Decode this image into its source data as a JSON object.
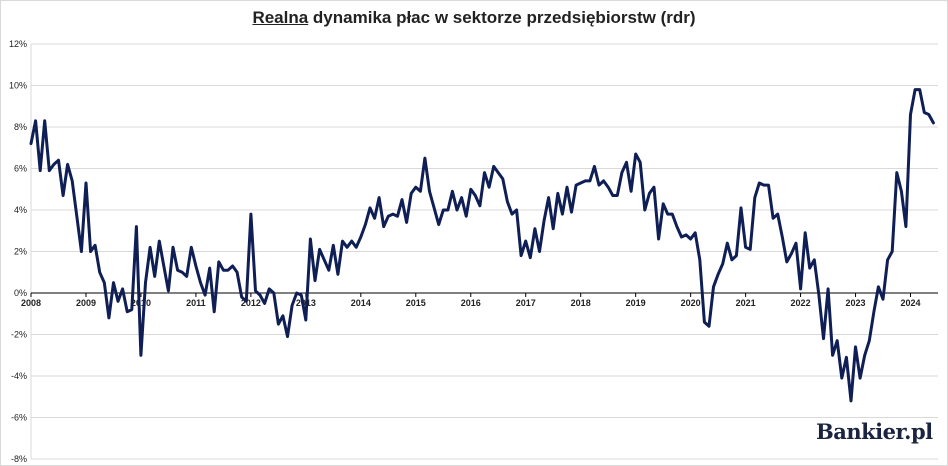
{
  "title": {
    "underlined": "Realna",
    "rest": " dynamika płac w sektorze przedsiębiorstw (rdr)"
  },
  "logo": "Bankier.pl",
  "colors": {
    "line": "#0f1f55",
    "grid": "#d9d9d9",
    "axis": "#000000"
  },
  "chart_data": {
    "type": "line",
    "title": "Realna dynamika płac w sektorze przedsiębiorstw (rdr)",
    "xlabel": "",
    "ylabel": "",
    "x_range": [
      2008.0,
      2024.5
    ],
    "ylim": [
      -8,
      12
    ],
    "grid": true,
    "y_ticks": [
      12,
      10,
      8,
      6,
      4,
      2,
      0,
      -2,
      -4,
      -6,
      -8
    ],
    "y_tick_labels": [
      "12%",
      "10%",
      "8%",
      "6%",
      "4%",
      "2%",
      "0%",
      "-2%",
      "-4%",
      "-6%",
      "-8%"
    ],
    "x_ticks": [
      2008,
      2009,
      2010,
      2011,
      2012,
      2013,
      2014,
      2015,
      2016,
      2017,
      2018,
      2019,
      2020,
      2021,
      2022,
      2023,
      2024
    ],
    "x_tick_labels": [
      "2008",
      "2009",
      "2010",
      "2011",
      "2012",
      "2013",
      "2014",
      "2015",
      "2016",
      "2017",
      "2018",
      "2019",
      "2020",
      "2021",
      "2022",
      "2023",
      "2024"
    ],
    "series": [
      {
        "name": "",
        "start": "2008-01",
        "frequency": "monthly",
        "values": [
          7.2,
          8.3,
          5.9,
          8.3,
          5.9,
          6.2,
          6.4,
          4.7,
          6.2,
          5.4,
          3.7,
          2.0,
          5.3,
          2.0,
          2.3,
          1.0,
          0.5,
          -1.2,
          0.5,
          -0.4,
          0.2,
          -0.9,
          -0.8,
          3.2,
          -3.0,
          0.5,
          2.2,
          0.8,
          2.5,
          1.3,
          0.1,
          2.2,
          1.1,
          1.0,
          0.8,
          2.2,
          1.3,
          0.5,
          -0.1,
          1.2,
          -0.9,
          1.5,
          1.1,
          1.1,
          1.3,
          1.0,
          -0.2,
          -0.4,
          3.8,
          0.1,
          -0.1,
          -0.5,
          0.2,
          0.0,
          -1.5,
          -1.1,
          -2.1,
          -0.6,
          0.0,
          -0.1,
          -1.3,
          2.6,
          0.6,
          2.1,
          1.6,
          1.1,
          2.3,
          0.9,
          2.5,
          2.2,
          2.5,
          2.2,
          2.7,
          3.3,
          4.1,
          3.6,
          4.6,
          3.2,
          3.7,
          3.8,
          3.7,
          4.5,
          3.4,
          4.8,
          5.1,
          4.9,
          6.5,
          4.9,
          4.1,
          3.3,
          4.0,
          4.0,
          4.9,
          4.0,
          4.6,
          3.7,
          5.0,
          4.7,
          4.2,
          5.8,
          5.1,
          6.1,
          5.8,
          5.5,
          4.4,
          3.8,
          4.0,
          1.8,
          2.5,
          1.7,
          3.1,
          2.0,
          3.5,
          4.6,
          3.1,
          4.8,
          3.8,
          5.1,
          3.9,
          5.2,
          5.3,
          5.4,
          5.4,
          6.1,
          5.2,
          5.4,
          5.1,
          4.7,
          4.7,
          5.8,
          6.3,
          4.9,
          6.7,
          6.3,
          4.0,
          4.8,
          5.1,
          2.6,
          4.3,
          3.8,
          3.8,
          3.2,
          2.7,
          2.8,
          2.6,
          2.9,
          1.6,
          -1.4,
          -1.6,
          0.3,
          0.9,
          1.4,
          2.4,
          1.6,
          1.8,
          4.1,
          2.2,
          2.1,
          4.6,
          5.3,
          5.2,
          5.2,
          3.6,
          3.8,
          2.7,
          1.5,
          1.9,
          2.4,
          0.2,
          2.9,
          1.2,
          1.6,
          -0.1,
          -2.2,
          0.2,
          -3.0,
          -2.3,
          -4.1,
          -3.1,
          -5.2,
          -2.6,
          -4.1,
          -3.0,
          -2.3,
          -0.9,
          0.3,
          -0.3,
          1.6,
          2.0,
          5.8,
          4.9,
          3.2,
          8.6,
          9.8,
          9.8,
          8.7,
          8.6,
          8.2
        ]
      }
    ]
  }
}
